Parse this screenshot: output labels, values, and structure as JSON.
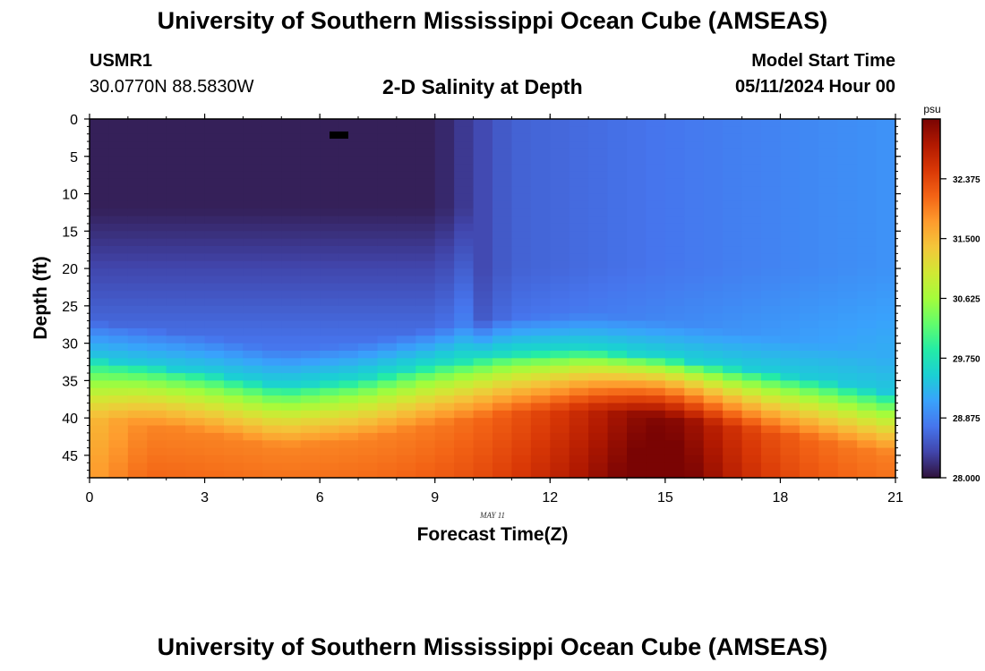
{
  "header": {
    "title": "University of Southern Mississippi Ocean Cube (AMSEAS)",
    "station_id": "USMR1",
    "station_coords": "30.0770N  88.5830W",
    "subtitle": "2-D Salinity at Depth",
    "model_start_label": "Model Start Time",
    "model_start_value": "05/11/2024 Hour 00"
  },
  "footer": {
    "title": "University of Southern Mississippi Ocean Cube (AMSEAS)"
  },
  "chart_data": {
    "type": "heatmap",
    "title": "2-D Salinity at Depth",
    "xlabel": "Forecast Time(Z)",
    "ylabel": "Depth (ft)",
    "date_annotation": "MAY 11",
    "x_ticks": [
      "0",
      "3",
      "6",
      "9",
      "12",
      "15",
      "18",
      "21"
    ],
    "y_ticks": [
      "0",
      "5",
      "10",
      "15",
      "20",
      "25",
      "30",
      "35",
      "40",
      "45"
    ],
    "xlim": [
      0,
      21
    ],
    "ylim": [
      0,
      48
    ],
    "colorbar": {
      "unit": "psu",
      "min": 28.0,
      "max": 33.25,
      "tick_labels": [
        "28.000",
        "28.875",
        "29.750",
        "30.625",
        "31.500",
        "32.375"
      ],
      "colors": [
        "#30123b",
        "#4145ab",
        "#4675ed",
        "#39a2fc",
        "#1bcfd4",
        "#24eca6",
        "#61fc6c",
        "#a4fc3b",
        "#d1e834",
        "#f3c63a",
        "#fe9b2d",
        "#f36315",
        "#d93806",
        "#b11901",
        "#7a0403"
      ]
    },
    "surface_min_salinity": 28.0,
    "deep_max_salinity": 33.2,
    "halocline_depth_ft": [
      {
        "time": 0,
        "depth": 32
      },
      {
        "time": 3,
        "depth": 34
      },
      {
        "time": 5,
        "depth": 36
      },
      {
        "time": 7,
        "depth": 35
      },
      {
        "time": 9,
        "depth": 33
      },
      {
        "time": 11,
        "depth": 31.5
      },
      {
        "time": 13,
        "depth": 31
      },
      {
        "time": 15,
        "depth": 32
      },
      {
        "time": 17,
        "depth": 33.5
      },
      {
        "time": 19,
        "depth": 35
      },
      {
        "time": 21,
        "depth": 37
      }
    ]
  }
}
